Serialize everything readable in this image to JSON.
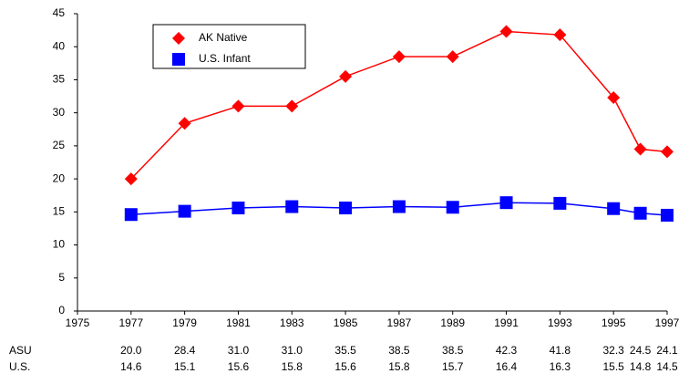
{
  "chart_data": {
    "type": "line",
    "x": [
      1977,
      1979,
      1981,
      1983,
      1985,
      1987,
      1989,
      1991,
      1993,
      1995,
      1996,
      1997
    ],
    "series": [
      {
        "name": "AK Native",
        "table_label": "ASU",
        "color": "#ff0000",
        "marker": "diamond",
        "values": [
          20,
          28.4,
          31,
          31,
          35.5,
          38.5,
          38.5,
          42.3,
          41.8,
          32.3,
          24.5,
          24.1
        ],
        "value_labels": [
          "20.0",
          "28.4",
          "31.0",
          "31.0",
          "35.5",
          "38.5",
          "38.5",
          "42.3",
          "41.8",
          "32.3",
          "24.5",
          "24.1"
        ]
      },
      {
        "name": "U.S. Infant",
        "table_label": "U.S.",
        "color": "#0000ff",
        "marker": "square",
        "values": [
          14.6,
          15.1,
          15.6,
          15.8,
          15.6,
          15.8,
          15.7,
          16.4,
          16.3,
          15.5,
          14.8,
          14.5
        ],
        "value_labels": [
          "14.6",
          "15.1",
          "15.6",
          "15.8",
          "15.6",
          "15.8",
          "15.7",
          "16.4",
          "16.3",
          "15.5",
          "14.8",
          "14.5"
        ]
      }
    ],
    "xlim": [
      1975,
      1997
    ],
    "xticks": [
      1975,
      1977,
      1979,
      1981,
      1983,
      1985,
      1987,
      1989,
      1991,
      1993,
      1995,
      1997
    ],
    "ylim": [
      0,
      45
    ],
    "yticks": [
      0,
      5,
      10,
      15,
      20,
      25,
      30,
      35,
      40,
      45
    ],
    "grid": false
  }
}
